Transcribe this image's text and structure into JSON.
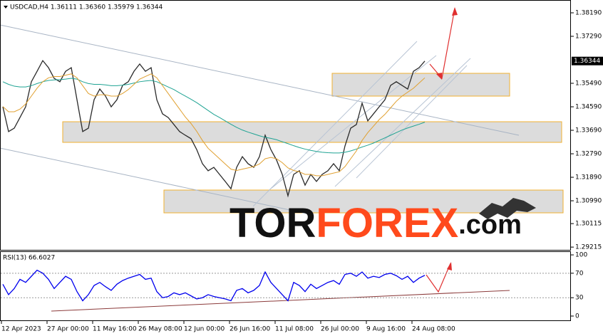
{
  "chart_data": [
    {
      "type": "line",
      "header": "USDCAD,H4  1.36111 1.36360 1.35979 1.36344",
      "watermark": [
        "TOR",
        "FOREX",
        ".com"
      ],
      "categories": [
        "12 Apr 2023",
        null,
        null,
        null,
        null,
        null,
        null,
        null,
        "27 Apr 00:00",
        null,
        null,
        null,
        null,
        null,
        null,
        null,
        "11 May 16:00",
        null,
        null,
        null,
        null,
        null,
        null,
        null,
        "26 May 08:00",
        null,
        null,
        null,
        null,
        null,
        null,
        null,
        "12 Jun 00:00",
        null,
        null,
        null,
        null,
        null,
        null,
        null,
        "26 Jun 16:00",
        null,
        null,
        null,
        null,
        null,
        null,
        null,
        "11 Jul 08:00",
        null,
        null,
        null,
        null,
        null,
        null,
        null,
        "26 Jul 00:00",
        null,
        null,
        null,
        null,
        null,
        null,
        null,
        "9 Aug 16:00",
        null,
        null,
        null,
        null,
        null,
        null,
        null,
        "24 Aug 08:00",
        null,
        null
      ],
      "series": [
        {
          "color": "#2a2a2a",
          "values": [
            1.3459,
            1.3364,
            1.3377,
            1.3418,
            1.3459,
            1.3555,
            1.3595,
            1.3636,
            1.3609,
            1.3568,
            1.3555,
            1.3595,
            1.3609,
            1.3486,
            1.3364,
            1.3377,
            1.3486,
            1.3527,
            1.35,
            1.3459,
            1.3486,
            1.3541,
            1.3555,
            1.3595,
            1.3623,
            1.3595,
            1.3609,
            1.3486,
            1.3432,
            1.3418,
            1.3391,
            1.3364,
            1.335,
            1.3337,
            1.3295,
            1.3241,
            1.3214,
            1.3227,
            1.32,
            1.3173,
            1.3145,
            1.3227,
            1.3268,
            1.3241,
            1.3227,
            1.3268,
            1.335,
            1.3295,
            1.3255,
            1.32,
            1.3118,
            1.32,
            1.3214,
            1.3159,
            1.32,
            1.3173,
            1.32,
            1.3214,
            1.3241,
            1.3214,
            1.3309,
            1.3377,
            1.3391,
            1.3473,
            1.3405,
            1.3432,
            1.3459,
            1.3486,
            1.3541,
            1.3555,
            1.3541,
            1.3527,
            1.3595,
            1.3609,
            1.3634
          ]
        },
        {
          "color": "#1fa393",
          "values": [
            1.3555,
            1.3545,
            1.3538,
            1.3535,
            1.3535,
            1.354,
            1.3548,
            1.3555,
            1.356,
            1.3562,
            1.3563,
            1.3565,
            1.3568,
            1.3565,
            1.3555,
            1.3548,
            1.3545,
            1.3545,
            1.3543,
            1.354,
            1.354,
            1.3542,
            1.3545,
            1.355,
            1.3555,
            1.3558,
            1.356,
            1.3555,
            1.3545,
            1.3535,
            1.3525,
            1.3512,
            1.35,
            1.3488,
            1.3475,
            1.346,
            1.3445,
            1.343,
            1.3418,
            1.3405,
            1.3392,
            1.338,
            1.337,
            1.3362,
            1.3355,
            1.3348,
            1.3342,
            1.3338,
            1.3333,
            1.3325,
            1.3318,
            1.331,
            1.3303,
            1.3297,
            1.3292,
            1.3288,
            1.3285,
            1.3283,
            1.3282,
            1.3282,
            1.3285,
            1.329,
            1.3297,
            1.3305,
            1.3312,
            1.332,
            1.333,
            1.334,
            1.335,
            1.336,
            1.337,
            1.3378,
            1.3385,
            1.3392,
            1.34
          ]
        },
        {
          "color": "#e0a030",
          "values": [
            1.346,
            1.344,
            1.344,
            1.345,
            1.347,
            1.35,
            1.353,
            1.3555,
            1.357,
            1.3575,
            1.3575,
            1.358,
            1.3585,
            1.357,
            1.354,
            1.351,
            1.35,
            1.3505,
            1.3505,
            1.35,
            1.35,
            1.351,
            1.3525,
            1.3545,
            1.3565,
            1.3575,
            1.3585,
            1.357,
            1.354,
            1.351,
            1.348,
            1.345,
            1.342,
            1.3395,
            1.3365,
            1.333,
            1.33,
            1.328,
            1.326,
            1.324,
            1.322,
            1.3215,
            1.322,
            1.3225,
            1.323,
            1.324,
            1.326,
            1.3265,
            1.326,
            1.3245,
            1.3225,
            1.3215,
            1.321,
            1.32,
            1.32,
            1.3195,
            1.3195,
            1.32,
            1.3205,
            1.321,
            1.323,
            1.326,
            1.329,
            1.333,
            1.336,
            1.3385,
            1.341,
            1.343,
            1.3455,
            1.348,
            1.35,
            1.3515,
            1.353,
            1.355,
            1.357
          ]
        }
      ],
      "ylim": [
        1.29082,
        1.38681
      ],
      "yticks": [
        {
          "value": 1.3819,
          "label": "1.38190"
        },
        {
          "value": 1.3729,
          "label": "1.37290"
        },
        {
          "value": 1.3549,
          "label": "1.35490"
        },
        {
          "value": 1.3459,
          "label": "1.34590"
        },
        {
          "value": 1.3369,
          "label": "1.33690"
        },
        {
          "value": 1.3279,
          "label": "1.32790"
        },
        {
          "value": 1.3189,
          "label": "1.31890"
        },
        {
          "value": 1.3099,
          "label": "1.30990"
        },
        {
          "value": 1.30115,
          "label": "1.30115"
        },
        {
          "value": 1.29215,
          "label": "1.29215"
        }
      ],
      "last_price": {
        "value": 1.36344,
        "label": "1.36344"
      }
    },
    {
      "type": "line",
      "title": "RSI(13) 66.6027",
      "series": [
        {
          "color": "#0000ee",
          "values": [
            52,
            35,
            45,
            60,
            55,
            65,
            75,
            70,
            60,
            45,
            55,
            65,
            60,
            40,
            25,
            35,
            50,
            55,
            48,
            42,
            52,
            58,
            62,
            65,
            68,
            60,
            62,
            40,
            30,
            32,
            38,
            35,
            38,
            33,
            28,
            30,
            35,
            32,
            30,
            28,
            25,
            42,
            45,
            38,
            42,
            50,
            72,
            55,
            45,
            35,
            25,
            55,
            50,
            40,
            52,
            45,
            50,
            55,
            58,
            52,
            68,
            70,
            65,
            72,
            62,
            65,
            63,
            68,
            70,
            66,
            60,
            65,
            55,
            62,
            66.6027
          ]
        }
      ],
      "ylim": [
        -7,
        104.7
      ],
      "yticks": [
        100,
        70,
        30,
        0
      ]
    }
  ]
}
